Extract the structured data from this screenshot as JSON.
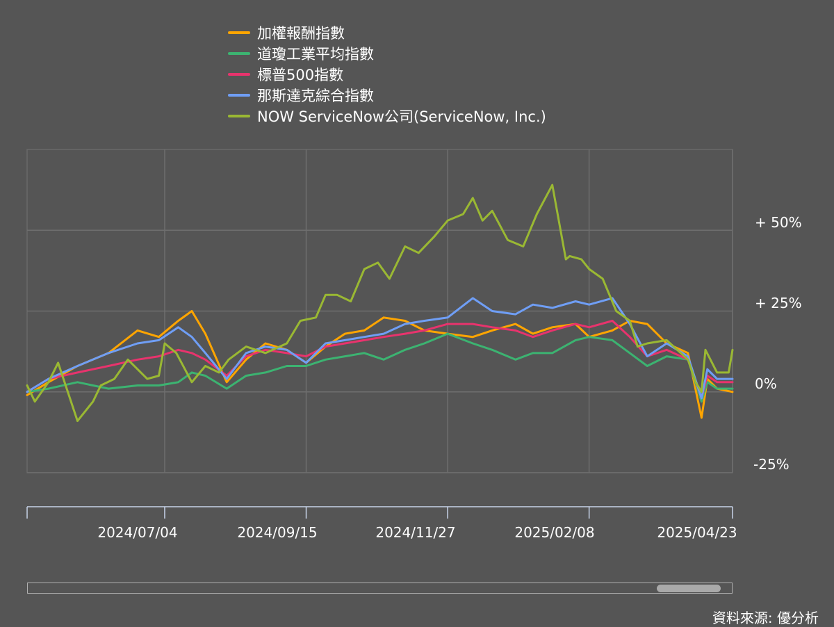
{
  "chart_data": {
    "type": "line",
    "legend_position": "top",
    "grid": true,
    "ylim": [
      -25,
      75
    ],
    "y_ticks": [
      "+ 50%",
      "+ 25%",
      "0%",
      "-25%"
    ],
    "y_tick_values": [
      50,
      25,
      0,
      -25
    ],
    "x_tick_labels": [
      "2024/07/04",
      "2024/09/15",
      "2024/11/27",
      "2025/02/08",
      "2025/04/23"
    ],
    "x_tick_dates": [
      "2024-07-04",
      "2024-09-15",
      "2024-11-27",
      "2025-02-08",
      "2025-04-23"
    ],
    "x_range": [
      "2024-04-24",
      "2025-04-23"
    ],
    "series": [
      {
        "name": "加權報酬指數",
        "color": "#ffa500",
        "x": [
          "2024-04-24",
          "2024-05-05",
          "2024-05-20",
          "2024-06-05",
          "2024-06-20",
          "2024-07-01",
          "2024-07-11",
          "2024-07-18",
          "2024-07-25",
          "2024-08-05",
          "2024-08-15",
          "2024-08-25",
          "2024-09-05",
          "2024-09-15",
          "2024-09-25",
          "2024-10-05",
          "2024-10-15",
          "2024-10-25",
          "2024-11-05",
          "2024-11-15",
          "2024-11-27",
          "2024-12-10",
          "2024-12-20",
          "2025-01-01",
          "2025-01-10",
          "2025-01-20",
          "2025-02-01",
          "2025-02-08",
          "2025-02-20",
          "2025-03-01",
          "2025-03-10",
          "2025-03-20",
          "2025-03-31",
          "2025-04-07",
          "2025-04-10",
          "2025-04-15",
          "2025-04-23"
        ],
        "y": [
          -1,
          3,
          8,
          12,
          19,
          17,
          22,
          25,
          18,
          3,
          10,
          15,
          13,
          9,
          14,
          18,
          19,
          23,
          22,
          19,
          18,
          17,
          19,
          21,
          18,
          20,
          21,
          17,
          19,
          22,
          21,
          15,
          12,
          -8,
          4,
          1,
          0
        ]
      },
      {
        "name": "道瓊工業平均指數",
        "color": "#3cb371",
        "x": [
          "2024-04-24",
          "2024-05-05",
          "2024-05-20",
          "2024-06-05",
          "2024-06-20",
          "2024-07-01",
          "2024-07-11",
          "2024-07-18",
          "2024-07-25",
          "2024-08-05",
          "2024-08-15",
          "2024-08-25",
          "2024-09-05",
          "2024-09-15",
          "2024-09-25",
          "2024-10-05",
          "2024-10-15",
          "2024-10-25",
          "2024-11-05",
          "2024-11-15",
          "2024-11-27",
          "2024-12-10",
          "2024-12-20",
          "2025-01-01",
          "2025-01-10",
          "2025-01-20",
          "2025-02-01",
          "2025-02-08",
          "2025-02-20",
          "2025-03-01",
          "2025-03-10",
          "2025-03-20",
          "2025-03-31",
          "2025-04-07",
          "2025-04-10",
          "2025-04-15",
          "2025-04-23"
        ],
        "y": [
          0,
          1,
          3,
          1,
          2,
          2,
          3,
          6,
          5,
          1,
          5,
          6,
          8,
          8,
          10,
          11,
          12,
          10,
          13,
          15,
          18,
          15,
          13,
          10,
          12,
          12,
          16,
          17,
          16,
          12,
          8,
          11,
          10,
          -3,
          3,
          1,
          1
        ]
      },
      {
        "name": "標普500指數",
        "color": "#e8336d",
        "x": [
          "2024-04-24",
          "2024-05-05",
          "2024-05-20",
          "2024-06-05",
          "2024-06-20",
          "2024-07-01",
          "2024-07-11",
          "2024-07-18",
          "2024-07-25",
          "2024-08-05",
          "2024-08-15",
          "2024-08-25",
          "2024-09-05",
          "2024-09-15",
          "2024-09-25",
          "2024-10-05",
          "2024-10-15",
          "2024-10-25",
          "2024-11-05",
          "2024-11-15",
          "2024-11-27",
          "2024-12-10",
          "2024-12-20",
          "2025-01-01",
          "2025-01-10",
          "2025-01-20",
          "2025-02-01",
          "2025-02-08",
          "2025-02-20",
          "2025-03-01",
          "2025-03-10",
          "2025-03-20",
          "2025-03-31",
          "2025-04-07",
          "2025-04-10",
          "2025-04-15",
          "2025-04-23"
        ],
        "y": [
          0,
          4,
          6,
          8,
          10,
          11,
          13,
          12,
          10,
          5,
          11,
          13,
          12,
          11,
          14,
          15,
          16,
          17,
          18,
          19,
          21,
          21,
          20,
          19,
          17,
          19,
          21,
          20,
          22,
          17,
          11,
          13,
          10,
          -2,
          5,
          3,
          3
        ]
      },
      {
        "name": "那斯達克綜合指數",
        "color": "#6f9ef5",
        "x": [
          "2024-04-24",
          "2024-05-05",
          "2024-05-20",
          "2024-06-05",
          "2024-06-20",
          "2024-07-01",
          "2024-07-11",
          "2024-07-18",
          "2024-07-25",
          "2024-08-05",
          "2024-08-15",
          "2024-08-25",
          "2024-09-05",
          "2024-09-15",
          "2024-09-25",
          "2024-10-05",
          "2024-10-15",
          "2024-10-25",
          "2024-11-05",
          "2024-11-15",
          "2024-11-27",
          "2024-12-10",
          "2024-12-20",
          "2025-01-01",
          "2025-01-10",
          "2025-01-20",
          "2025-02-01",
          "2025-02-08",
          "2025-02-20",
          "2025-03-01",
          "2025-03-10",
          "2025-03-20",
          "2025-03-31",
          "2025-04-07",
          "2025-04-10",
          "2025-04-15",
          "2025-04-23"
        ],
        "y": [
          0,
          4,
          8,
          12,
          15,
          16,
          20,
          17,
          12,
          4,
          12,
          14,
          13,
          9,
          15,
          16,
          17,
          18,
          21,
          22,
          23,
          29,
          25,
          24,
          27,
          26,
          28,
          27,
          29,
          21,
          11,
          15,
          11,
          -2,
          7,
          4,
          4
        ]
      },
      {
        "name": "NOW ServiceNow公司(ServiceNow, Inc.)",
        "color": "#9ab833",
        "x": [
          "2024-04-24",
          "2024-04-28",
          "2024-05-05",
          "2024-05-10",
          "2024-05-20",
          "2024-05-28",
          "2024-06-01",
          "2024-06-08",
          "2024-06-15",
          "2024-06-25",
          "2024-07-01",
          "2024-07-04",
          "2024-07-10",
          "2024-07-18",
          "2024-07-25",
          "2024-08-01",
          "2024-08-06",
          "2024-08-15",
          "2024-08-25",
          "2024-09-05",
          "2024-09-12",
          "2024-09-20",
          "2024-09-25",
          "2024-10-01",
          "2024-10-08",
          "2024-10-15",
          "2024-10-22",
          "2024-10-28",
          "2024-11-05",
          "2024-11-12",
          "2024-11-20",
          "2024-11-27",
          "2024-12-05",
          "2024-12-10",
          "2024-12-15",
          "2024-12-20",
          "2024-12-28",
          "2025-01-05",
          "2025-01-12",
          "2025-01-20",
          "2025-01-27",
          "2025-01-29",
          "2025-02-04",
          "2025-02-08",
          "2025-02-15",
          "2025-02-22",
          "2025-03-01",
          "2025-03-05",
          "2025-03-10",
          "2025-03-20",
          "2025-03-31",
          "2025-04-04",
          "2025-04-07",
          "2025-04-09",
          "2025-04-15",
          "2025-04-21",
          "2025-04-23"
        ],
        "y": [
          2,
          -3,
          3,
          9,
          -9,
          -3,
          2,
          4,
          10,
          4,
          5,
          15,
          12,
          3,
          8,
          6,
          10,
          14,
          12,
          15,
          22,
          23,
          30,
          30,
          28,
          38,
          40,
          35,
          45,
          43,
          48,
          53,
          55,
          60,
          53,
          56,
          47,
          45,
          55,
          64,
          41,
          42,
          41,
          38,
          35,
          25,
          22,
          14,
          15,
          16,
          10,
          3,
          0,
          13,
          6,
          6,
          13
        ]
      }
    ]
  },
  "source": "資料來源: 優分析"
}
